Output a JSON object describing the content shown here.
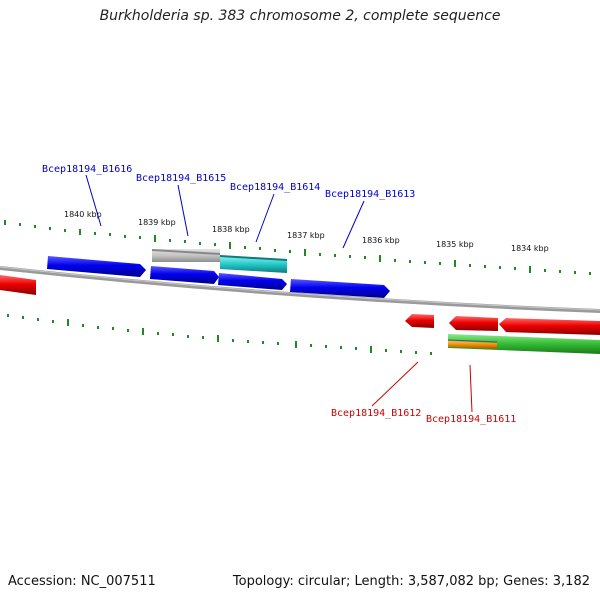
{
  "title": "Burkholderia sp. 383 chromosome 2, complete sequence",
  "footer": {
    "accession": "Accession: NC_007511",
    "stats": "Topology: circular; Length: 3,587,082 bp; Genes: 3,182"
  },
  "ruler": [
    "1840 kbp",
    "1839 kbp",
    "1838 kbp",
    "1837 kbp",
    "1836 kbp",
    "1835 kbp",
    "1834 kbp"
  ],
  "labels": {
    "b1616": "Bcep18194_B1616",
    "b1615": "Bcep18194_B1615",
    "b1614": "Bcep18194_B1614",
    "b1613": "Bcep18194_B1613",
    "b1612": "Bcep18194_B1612",
    "b1611": "Bcep18194_B1611"
  },
  "colors": {
    "forward_gene": "#0000dd",
    "reverse_gene": "#dd0000",
    "pseudo_gene": "#b8b8b8",
    "rna_gene": "#22bbbb",
    "feature_green": "#33bb33",
    "feature_orange": "#ee8800",
    "tick_green": "#228822",
    "backbone": "#888888",
    "label_blue": "#0000cc",
    "label_red": "#cc0000"
  }
}
